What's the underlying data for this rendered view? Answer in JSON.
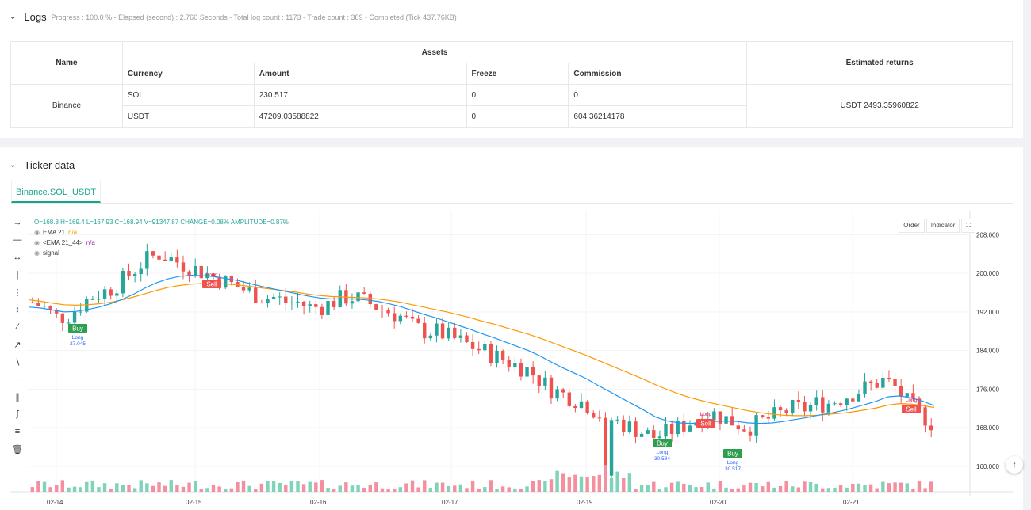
{
  "logs": {
    "title": "Logs",
    "summary": "Progress : 100.0 % - Elapsed (second) : 2.760  Seconds - Total log count : 1173 - Trade count : 389 - Completed (Tick 437.76KB)"
  },
  "assets_table": {
    "name_header": "Name",
    "assets_header": "Assets",
    "returns_header": "Estimated returns",
    "columns": [
      "Currency",
      "Amount",
      "Freeze",
      "Commission"
    ],
    "exchange": "Binance",
    "rows": [
      [
        "SOL",
        "230.517",
        "0",
        "0"
      ],
      [
        "USDT",
        "47209.03588822",
        "0",
        "604.36214178"
      ]
    ],
    "estimated_returns": "USDT 2493.35960822"
  },
  "ticker": {
    "title": "Ticker data",
    "tab": "Binance.SOL_USDT"
  },
  "chart_header": {
    "ohlc": "O=168.8  H=169.4  L=167.93  C=168.94  V=91347.87  CHANGE=0.08%  AMPLITUDE=0.87%",
    "ind1_name": "EMA 21",
    "ind1_val": "n/a",
    "ind2_name": "<EMA 21_44>",
    "ind2_val": "n/a",
    "ind3_name": "signal",
    "btn_order": "Order",
    "btn_indicator": "Indicator"
  },
  "chart_data": {
    "type": "candlestick",
    "x_ticks": [
      "02-14",
      "02-15",
      "02-16",
      "02-17",
      "02-19",
      "02-20",
      "02-21"
    ],
    "y_ticks": [
      "208.000",
      "200.000",
      "192.000",
      "184.000",
      "176.000",
      "168.000",
      "160.000"
    ],
    "ylim": [
      158,
      213
    ],
    "series": [
      {
        "name": "EMA 21",
        "color": "#2196f3"
      },
      {
        "name": "<EMA 21_44>",
        "color": "#ff9800"
      }
    ],
    "close_path": [
      194,
      193,
      191,
      191,
      193,
      195,
      196,
      197,
      199,
      201,
      203,
      204,
      203,
      202,
      201,
      200,
      199,
      198,
      197,
      196,
      195,
      195,
      194,
      194,
      193,
      193,
      194,
      195,
      195,
      194,
      193,
      192,
      191,
      189,
      188,
      188,
      187,
      186,
      185,
      184,
      183,
      182,
      181,
      180,
      178,
      176,
      175,
      174,
      173,
      171,
      170,
      169,
      168,
      167,
      166,
      167,
      168,
      169,
      170,
      171,
      170,
      169,
      168,
      169,
      170,
      171,
      172,
      172,
      173,
      173,
      174,
      175,
      176,
      177,
      178,
      176,
      173,
      171,
      169
    ],
    "ema21": [
      193.0,
      192.8,
      192.4,
      192.0,
      192.1,
      192.5,
      193.0,
      193.7,
      194.6,
      195.7,
      197.0,
      198.1,
      198.9,
      199.4,
      199.6,
      199.5,
      199.3,
      198.9,
      198.5,
      197.9,
      197.3,
      196.8,
      196.3,
      195.8,
      195.3,
      194.9,
      194.7,
      194.7,
      194.7,
      194.5,
      194.2,
      193.7,
      193.1,
      192.3,
      191.5,
      190.8,
      190.0,
      189.2,
      188.4,
      187.5,
      186.7,
      185.8,
      184.9,
      184.0,
      182.9,
      181.6,
      180.4,
      179.3,
      178.2,
      176.8,
      175.5,
      174.2,
      172.9,
      171.6,
      170.2,
      169.4,
      169.0,
      168.9,
      169.0,
      169.3,
      169.4,
      169.3,
      169.0,
      168.9,
      169.0,
      169.3,
      169.7,
      170.1,
      170.6,
      171.0,
      171.5,
      172.1,
      172.8,
      173.5,
      174.4,
      174.6,
      174.2,
      173.5,
      172.6
    ],
    "ema44": [
      194.5,
      194.2,
      193.8,
      193.5,
      193.4,
      193.5,
      193.7,
      194.0,
      194.5,
      195.1,
      195.8,
      196.5,
      197.1,
      197.5,
      197.8,
      197.9,
      197.9,
      197.8,
      197.6,
      197.3,
      197.0,
      196.7,
      196.4,
      196.1,
      195.7,
      195.4,
      195.2,
      195.1,
      195.0,
      194.9,
      194.7,
      194.4,
      194.0,
      193.5,
      193.0,
      192.5,
      192.0,
      191.4,
      190.8,
      190.1,
      189.5,
      188.8,
      188.1,
      187.4,
      186.6,
      185.7,
      184.8,
      183.9,
      183.0,
      182.0,
      181.0,
      180.0,
      179.0,
      178.0,
      176.9,
      175.9,
      175.0,
      174.2,
      173.6,
      173.0,
      172.5,
      172.0,
      171.5,
      171.1,
      170.8,
      170.6,
      170.5,
      170.5,
      170.6,
      170.8,
      171.0,
      171.3,
      171.7,
      172.1,
      172.7,
      173.0,
      172.9,
      172.6,
      172.2
    ],
    "signals": [
      {
        "label": "Buy",
        "sub": "Long",
        "value": "27.045"
      },
      {
        "label": "Sell",
        "sub": "Long",
        "value": ""
      },
      {
        "label": "Buy",
        "sub": "Long",
        "value": "30.584"
      },
      {
        "label": "Sell",
        "sub": "Long",
        "value": ""
      },
      {
        "label": "Buy",
        "sub": "Long",
        "value": "30.517"
      },
      {
        "label": "Sell",
        "sub": "Long",
        "value": ""
      }
    ]
  }
}
